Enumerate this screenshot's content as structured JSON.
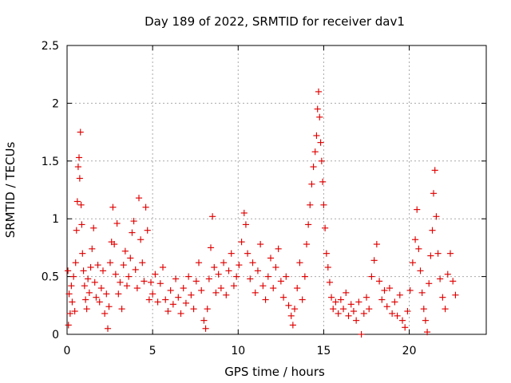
{
  "chart_data": {
    "type": "scatter",
    "title": "Day 189 of 2022, SRMTID for receiver dav1",
    "xlabel": "GPS time / hours",
    "ylabel": "SRMTID / TECUs",
    "xlim": [
      0,
      24.5
    ],
    "ylim": [
      0,
      2.5
    ],
    "x_ticks": [
      0,
      5,
      10,
      15,
      20
    ],
    "x_tick_labels": [
      "0",
      "5",
      "10",
      "15",
      "20"
    ],
    "y_ticks": [
      0,
      0.5,
      1,
      1.5,
      2,
      2.5
    ],
    "y_tick_labels": [
      "0",
      "0.5",
      "1",
      "1.5",
      "2",
      "2.5"
    ],
    "grid": true,
    "marker": "plus",
    "series": [
      {
        "name": "SRMTID",
        "color": "#e00000",
        "points": [
          [
            0.05,
            0.55
          ],
          [
            0.08,
            0.08
          ],
          [
            0.12,
            0.35
          ],
          [
            0.18,
            0.18
          ],
          [
            0.25,
            0.42
          ],
          [
            0.3,
            0.28
          ],
          [
            0.38,
            0.5
          ],
          [
            0.45,
            0.2
          ],
          [
            0.5,
            0.62
          ],
          [
            0.55,
            0.9
          ],
          [
            0.6,
            1.15
          ],
          [
            0.65,
            1.45
          ],
          [
            0.7,
            1.53
          ],
          [
            0.74,
            1.35
          ],
          [
            0.78,
            1.75
          ],
          [
            0.82,
            1.12
          ],
          [
            0.86,
            0.95
          ],
          [
            0.9,
            0.7
          ],
          [
            0.96,
            0.55
          ],
          [
            1.02,
            0.42
          ],
          [
            1.08,
            0.3
          ],
          [
            1.15,
            0.22
          ],
          [
            1.22,
            0.48
          ],
          [
            1.3,
            0.36
          ],
          [
            1.38,
            0.58
          ],
          [
            1.46,
            0.74
          ],
          [
            1.55,
            0.92
          ],
          [
            1.62,
            0.45
          ],
          [
            1.7,
            0.32
          ],
          [
            1.8,
            0.6
          ],
          [
            1.9,
            0.28
          ],
          [
            2.0,
            0.4
          ],
          [
            2.1,
            0.55
          ],
          [
            2.2,
            0.18
          ],
          [
            2.3,
            0.35
          ],
          [
            2.38,
            0.05
          ],
          [
            2.45,
            0.24
          ],
          [
            2.52,
            0.62
          ],
          [
            2.6,
            0.8
          ],
          [
            2.68,
            1.1
          ],
          [
            2.76,
            0.78
          ],
          [
            2.84,
            0.52
          ],
          [
            2.92,
            0.96
          ],
          [
            3.0,
            0.35
          ],
          [
            3.1,
            0.45
          ],
          [
            3.2,
            0.22
          ],
          [
            3.3,
            0.6
          ],
          [
            3.4,
            0.72
          ],
          [
            3.5,
            0.42
          ],
          [
            3.6,
            0.5
          ],
          [
            3.7,
            0.66
          ],
          [
            3.8,
            0.88
          ],
          [
            3.9,
            0.98
          ],
          [
            4.0,
            0.56
          ],
          [
            4.1,
            0.4
          ],
          [
            4.2,
            1.18
          ],
          [
            4.3,
            0.82
          ],
          [
            4.4,
            0.62
          ],
          [
            4.5,
            0.46
          ],
          [
            4.6,
            1.1
          ],
          [
            4.7,
            0.9
          ],
          [
            4.8,
            0.3
          ],
          [
            4.9,
            0.45
          ],
          [
            5.0,
            0.35
          ],
          [
            5.15,
            0.52
          ],
          [
            5.3,
            0.28
          ],
          [
            5.45,
            0.44
          ],
          [
            5.6,
            0.58
          ],
          [
            5.75,
            0.3
          ],
          [
            5.9,
            0.2
          ],
          [
            6.05,
            0.38
          ],
          [
            6.2,
            0.26
          ],
          [
            6.35,
            0.48
          ],
          [
            6.5,
            0.32
          ],
          [
            6.65,
            0.18
          ],
          [
            6.8,
            0.4
          ],
          [
            6.95,
            0.27
          ],
          [
            7.1,
            0.5
          ],
          [
            7.25,
            0.34
          ],
          [
            7.4,
            0.22
          ],
          [
            7.55,
            0.46
          ],
          [
            7.7,
            0.62
          ],
          [
            7.85,
            0.38
          ],
          [
            8.0,
            0.12
          ],
          [
            8.1,
            0.05
          ],
          [
            8.2,
            0.22
          ],
          [
            8.3,
            0.48
          ],
          [
            8.4,
            0.75
          ],
          [
            8.5,
            1.02
          ],
          [
            8.6,
            0.58
          ],
          [
            8.7,
            0.36
          ],
          [
            8.85,
            0.52
          ],
          [
            9.0,
            0.4
          ],
          [
            9.15,
            0.62
          ],
          [
            9.3,
            0.34
          ],
          [
            9.45,
            0.55
          ],
          [
            9.6,
            0.7
          ],
          [
            9.75,
            0.42
          ],
          [
            9.9,
            0.5
          ],
          [
            10.05,
            0.6
          ],
          [
            10.2,
            0.8
          ],
          [
            10.35,
            1.05
          ],
          [
            10.45,
            0.95
          ],
          [
            10.55,
            0.7
          ],
          [
            10.7,
            0.48
          ],
          [
            10.85,
            0.62
          ],
          [
            11.0,
            0.36
          ],
          [
            11.15,
            0.55
          ],
          [
            11.3,
            0.78
          ],
          [
            11.45,
            0.42
          ],
          [
            11.6,
            0.3
          ],
          [
            11.75,
            0.5
          ],
          [
            11.9,
            0.66
          ],
          [
            12.05,
            0.4
          ],
          [
            12.2,
            0.58
          ],
          [
            12.35,
            0.74
          ],
          [
            12.5,
            0.46
          ],
          [
            12.65,
            0.32
          ],
          [
            12.8,
            0.5
          ],
          [
            12.95,
            0.25
          ],
          [
            13.1,
            0.16
          ],
          [
            13.2,
            0.08
          ],
          [
            13.3,
            0.22
          ],
          [
            13.45,
            0.4
          ],
          [
            13.6,
            0.62
          ],
          [
            13.75,
            0.3
          ],
          [
            13.9,
            0.5
          ],
          [
            14.0,
            0.78
          ],
          [
            14.1,
            0.95
          ],
          [
            14.2,
            1.12
          ],
          [
            14.3,
            1.3
          ],
          [
            14.4,
            1.45
          ],
          [
            14.5,
            1.58
          ],
          [
            14.58,
            1.72
          ],
          [
            14.64,
            1.95
          ],
          [
            14.7,
            2.1
          ],
          [
            14.76,
            1.88
          ],
          [
            14.82,
            1.66
          ],
          [
            14.88,
            1.5
          ],
          [
            14.94,
            1.32
          ],
          [
            15.0,
            1.12
          ],
          [
            15.08,
            0.92
          ],
          [
            15.16,
            0.7
          ],
          [
            15.25,
            0.58
          ],
          [
            15.35,
            0.45
          ],
          [
            15.45,
            0.32
          ],
          [
            15.55,
            0.22
          ],
          [
            15.7,
            0.28
          ],
          [
            15.85,
            0.18
          ],
          [
            16.0,
            0.3
          ],
          [
            16.15,
            0.22
          ],
          [
            16.3,
            0.36
          ],
          [
            16.45,
            0.16
          ],
          [
            16.6,
            0.26
          ],
          [
            16.75,
            0.2
          ],
          [
            16.9,
            0.12
          ],
          [
            17.05,
            0.28
          ],
          [
            17.2,
            0.0
          ],
          [
            17.35,
            0.18
          ],
          [
            17.5,
            0.32
          ],
          [
            17.65,
            0.22
          ],
          [
            17.8,
            0.5
          ],
          [
            17.95,
            0.64
          ],
          [
            18.1,
            0.78
          ],
          [
            18.25,
            0.46
          ],
          [
            18.4,
            0.3
          ],
          [
            18.55,
            0.38
          ],
          [
            18.7,
            0.24
          ],
          [
            18.85,
            0.4
          ],
          [
            19.0,
            0.18
          ],
          [
            19.15,
            0.28
          ],
          [
            19.3,
            0.16
          ],
          [
            19.45,
            0.34
          ],
          [
            19.6,
            0.12
          ],
          [
            19.75,
            0.06
          ],
          [
            19.9,
            0.2
          ],
          [
            20.05,
            0.38
          ],
          [
            20.2,
            0.62
          ],
          [
            20.35,
            0.82
          ],
          [
            20.45,
            1.08
          ],
          [
            20.55,
            0.74
          ],
          [
            20.65,
            0.55
          ],
          [
            20.75,
            0.36
          ],
          [
            20.85,
            0.22
          ],
          [
            20.95,
            0.12
          ],
          [
            21.05,
            0.02
          ],
          [
            21.15,
            0.44
          ],
          [
            21.25,
            0.68
          ],
          [
            21.35,
            0.9
          ],
          [
            21.42,
            1.22
          ],
          [
            21.5,
            1.42
          ],
          [
            21.58,
            1.02
          ],
          [
            21.68,
            0.7
          ],
          [
            21.8,
            0.48
          ],
          [
            21.95,
            0.32
          ],
          [
            22.1,
            0.22
          ],
          [
            22.25,
            0.52
          ],
          [
            22.4,
            0.7
          ],
          [
            22.55,
            0.46
          ],
          [
            22.7,
            0.34
          ]
        ]
      }
    ]
  }
}
